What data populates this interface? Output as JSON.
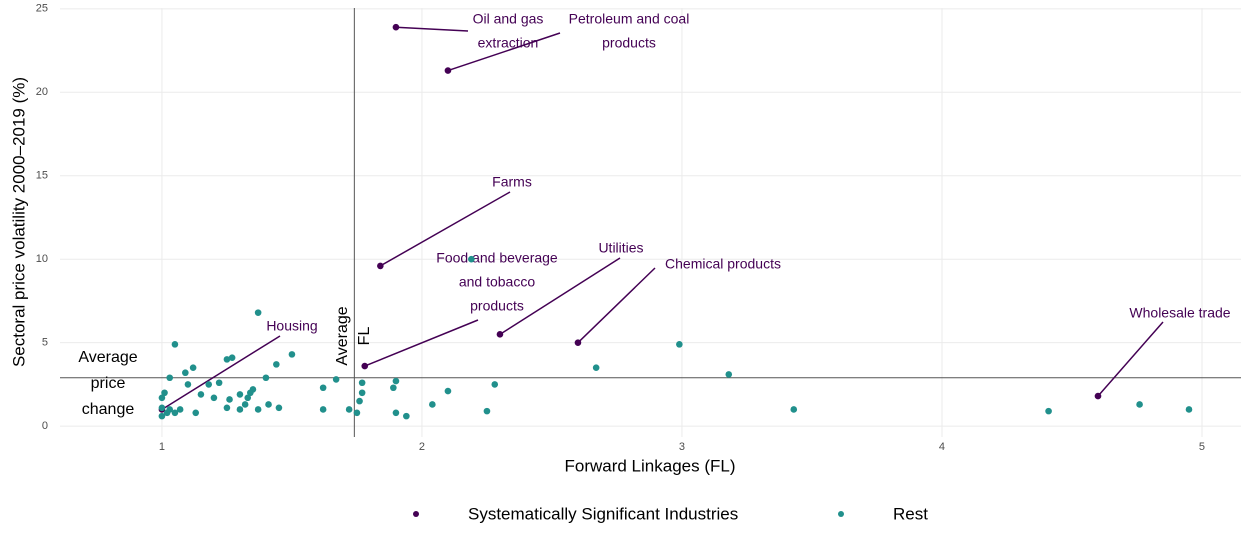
{
  "chart_data": {
    "type": "scatter",
    "x_label": "Forward Linkages (FL)",
    "y_label": "Sectoral price volatility 2000–2019 (%)",
    "xlim": [
      0.608,
      5.15
    ],
    "ylim": [
      -0.65,
      25.05
    ],
    "xticks": [
      1,
      2,
      3,
      4,
      5
    ],
    "yticks": [
      0,
      5,
      10,
      15,
      20,
      25
    ],
    "grid": true,
    "legend": "bottom",
    "reference_lines": {
      "x": {
        "value": 1.74,
        "label": [
          "Average",
          "FL"
        ]
      },
      "y": {
        "value": 2.9,
        "label": [
          "Average",
          "price",
          "change"
        ]
      }
    },
    "series": [
      {
        "name": "Systematically Significant Industries",
        "color": "#440154",
        "x": [
          1.9,
          2.1,
          1.84,
          1.78,
          2.3,
          2.6,
          4.6,
          1.0
        ],
        "values": [
          23.9,
          21.3,
          9.6,
          3.6,
          5.5,
          5.0,
          1.8,
          1.0
        ],
        "labels": [
          [
            "Oil and gas",
            "extraction"
          ],
          [
            "Petroleum and coal",
            "products"
          ],
          [
            "Farms"
          ],
          [
            "Food and beverage",
            "and tobacco",
            "products"
          ],
          [
            "Utilities"
          ],
          [
            "Chemical products"
          ],
          [
            "Wholesale trade"
          ],
          [
            "Housing"
          ]
        ]
      },
      {
        "name": "Rest",
        "color": "#21908c",
        "x": [
          1.05,
          1.37,
          2.19,
          2.99,
          2.67,
          3.18,
          1.5,
          1.27,
          1.25,
          1.44,
          1.12,
          1.09,
          1.03,
          1.4,
          1.67,
          1.9,
          1.1,
          1.22,
          1.18,
          1.77,
          2.28,
          1.62,
          1.89,
          1.35,
          1.34,
          1.77,
          2.1,
          1.01,
          1.0,
          1.15,
          1.3,
          1.2,
          1.26,
          1.33,
          1.76,
          1.32,
          2.04,
          1.41,
          1.45,
          1.25,
          1.37,
          1.3,
          1.72,
          1.62,
          1.03,
          1.07,
          1.02,
          1.05,
          1.13,
          1.75,
          1.9,
          1.94,
          2.25,
          3.43,
          4.41,
          4.76,
          4.95,
          1.0,
          1.0
        ],
        "values": [
          4.9,
          6.8,
          10.0,
          4.9,
          3.5,
          3.1,
          4.3,
          4.1,
          4.0,
          3.7,
          3.5,
          3.2,
          2.9,
          2.9,
          2.8,
          2.7,
          2.5,
          2.6,
          2.5,
          2.6,
          2.5,
          2.3,
          2.3,
          2.2,
          2.0,
          2.0,
          2.1,
          2.0,
          1.7,
          1.9,
          1.9,
          1.7,
          1.6,
          1.7,
          1.5,
          1.3,
          1.3,
          1.3,
          1.1,
          1.1,
          1.0,
          1.0,
          1.0,
          1.0,
          1.0,
          1.0,
          0.8,
          0.8,
          0.8,
          0.8,
          0.8,
          0.6,
          0.9,
          1.0,
          0.9,
          1.3,
          1.0,
          0.6,
          1.1
        ]
      }
    ]
  }
}
